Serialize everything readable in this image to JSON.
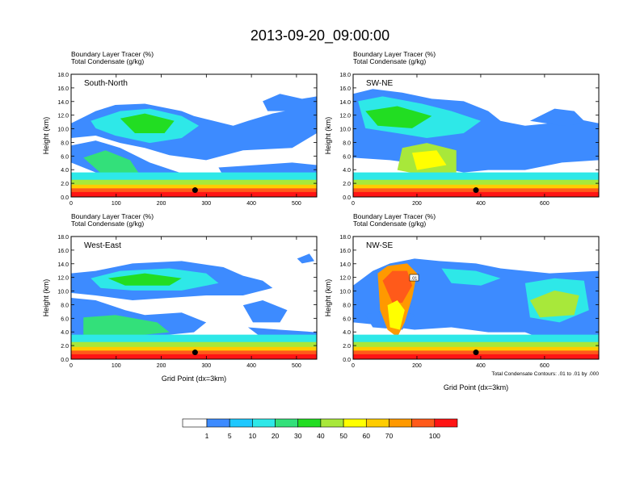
{
  "title": "2013-09-20_09:00:00",
  "colorbar": {
    "labels": [
      "1",
      "5",
      "10",
      "20",
      "30",
      "40",
      "50",
      "60",
      "70",
      "100"
    ],
    "colors": [
      "#ffffff",
      "#3d8bff",
      "#1ec8ff",
      "#2ee8e8",
      "#33e07a",
      "#22dd22",
      "#a8e83a",
      "#ffff00",
      "#ffcc00",
      "#ff9900",
      "#ff5a1a",
      "#ff1414"
    ]
  },
  "chart_data": [
    {
      "type": "heatmap",
      "panel_label": "South-North",
      "header_lines": [
        "Boundary Layer Tracer    (%)",
        "Total Condensate    (g/kg)"
      ],
      "ylabel": "Height (km)",
      "xlabel": "",
      "xlim": [
        0,
        545
      ],
      "ylim": [
        0,
        18
      ],
      "xticks": [
        "0",
        "100",
        "200",
        "300",
        "400",
        "500"
      ],
      "yticks": [
        "0.0",
        "2.0",
        "4.0",
        "6.0",
        "8.0",
        "10.0",
        "12.0",
        "14.0",
        "16.0",
        "18.0"
      ],
      "marker": {
        "x": 275,
        "y": 1.0
      },
      "footnote": ""
    },
    {
      "type": "heatmap",
      "panel_label": "SW-NE",
      "header_lines": [
        "Boundary Layer Tracer    (%)",
        "Total Condensate    (g/kg)"
      ],
      "ylabel": "Height (km)",
      "xlabel": "",
      "xlim": [
        0,
        770
      ],
      "ylim": [
        0,
        18
      ],
      "xticks": [
        "0",
        "200",
        "400",
        "600"
      ],
      "yticks": [
        "0.0",
        "2.0",
        "4.0",
        "6.0",
        "8.0",
        "10.0",
        "12.0",
        "14.0",
        "16.0",
        "18.0"
      ],
      "marker": {
        "x": 385,
        "y": 1.0
      },
      "footnote": ""
    },
    {
      "type": "heatmap",
      "panel_label": "West-East",
      "header_lines": [
        "Boundary Layer Tracer    (%)",
        "Total Condensate    (g/kg)"
      ],
      "ylabel": "Height (km)",
      "xlabel": "Grid Point (dx=3km)",
      "xlim": [
        0,
        545
      ],
      "ylim": [
        0,
        18
      ],
      "xticks": [
        "0",
        "100",
        "200",
        "300",
        "400",
        "500"
      ],
      "yticks": [
        "0.0",
        "2.0",
        "4.0",
        "6.0",
        "8.0",
        "10.0",
        "12.0",
        "14.0",
        "16.0",
        "18.0"
      ],
      "marker": {
        "x": 275,
        "y": 1.0
      },
      "footnote": ""
    },
    {
      "type": "heatmap",
      "panel_label": "NW-SE",
      "header_lines": [
        "Boundary Layer Tracer    (%)",
        "Total Condensate    (g/kg)"
      ],
      "ylabel": "Height (km)",
      "xlabel": "Grid Point (dx=3km)",
      "xlim": [
        0,
        770
      ],
      "ylim": [
        0,
        18
      ],
      "xticks": [
        "0",
        "200",
        "400",
        "600"
      ],
      "yticks": [
        "0.0",
        "2.0",
        "4.0",
        "6.0",
        "8.0",
        "10.0",
        "12.0",
        "14.0",
        "16.0",
        "18.0"
      ],
      "marker": {
        "x": 385,
        "y": 1.0
      },
      "footnote": "Total Condensate Contours: .01 to .01 by .000",
      "contour_label": ".01"
    }
  ]
}
